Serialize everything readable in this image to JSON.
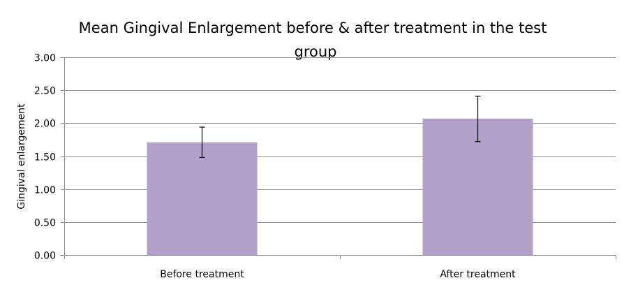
{
  "chart_data": {
    "type": "bar",
    "title_lines": [
      "Mean Gingival Enlargement before & after treatment in the test",
      "group"
    ],
    "title": "Mean Gingival Enlargement before & after treatment in the test group",
    "xlabel": "",
    "ylabel": "Gingival enlargement",
    "categories": [
      "Before treatment",
      "After treatment"
    ],
    "values": [
      1.71,
      2.07
    ],
    "error_low": [
      1.48,
      1.72
    ],
    "error_high": [
      1.94,
      2.41
    ],
    "ylim": [
      0,
      3.0
    ],
    "yticks": [
      "0.00",
      "0.50",
      "1.00",
      "1.50",
      "2.00",
      "2.50",
      "3.00"
    ],
    "ytick_values": [
      0,
      0.5,
      1.0,
      1.5,
      2.0,
      2.5,
      3.0
    ],
    "grid": true,
    "legend": "none",
    "bar_color": "#b1a0c7",
    "grid_color": "#8c8c8c"
  }
}
